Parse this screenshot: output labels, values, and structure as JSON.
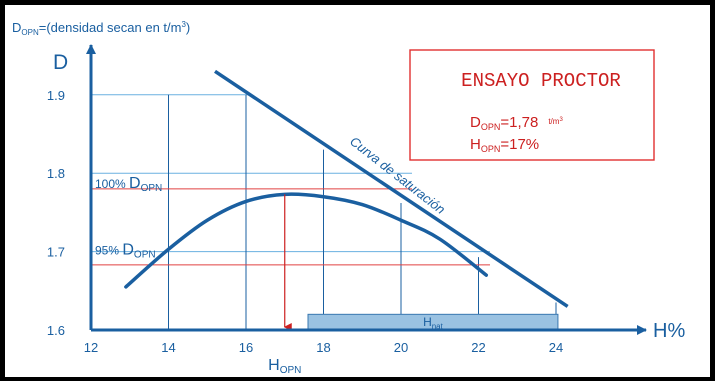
{
  "header": {
    "prefix": "D",
    "sub": "OPN",
    "suffix": "=(densidad secan en t/m",
    "sup": "3",
    "close": ")"
  },
  "infobox": {
    "title": "ENSAYO PROCTOR",
    "d_prefix": "D",
    "d_sub": "OPN",
    "d_value": "=1,78",
    "d_unit": "t/m",
    "d_unit_sup": "3",
    "h_prefix": "H",
    "h_sub": "OPN",
    "h_value": "=17%"
  },
  "colors": {
    "axis": "#1a5fa0",
    "curve": "#1a5fa0",
    "grid": "#6ab0e0",
    "red_line": "#e04040",
    "red_arrow": "#cc2020",
    "box_border": "#e03030",
    "box_text": "#cc2020",
    "band_fill": "#9ac2e2",
    "band_border": "#3a78b0"
  },
  "chart_data": {
    "type": "line",
    "ylabel": "D",
    "xlabel": "H%",
    "x_ticks": [
      12,
      14,
      16,
      18,
      20,
      22,
      24
    ],
    "y_ticks": [
      1.6,
      1.7,
      1.8,
      1.9
    ],
    "y_tick_labels": [
      "1.6",
      "1.7",
      "1.8",
      "1.9"
    ],
    "xlim": [
      12,
      27
    ],
    "ylim": [
      1.6,
      1.95
    ],
    "series": [
      {
        "name": "Curva de saturación",
        "points": [
          [
            15.2,
            1.93
          ],
          [
            24.3,
            1.63
          ]
        ]
      },
      {
        "points": [
          [
            12.9,
            1.655
          ],
          [
            14,
            1.703
          ],
          [
            15,
            1.74
          ],
          [
            16,
            1.764
          ],
          [
            17,
            1.773
          ],
          [
            18,
            1.77
          ],
          [
            19,
            1.76
          ],
          [
            20,
            1.74
          ],
          [
            21,
            1.716
          ],
          [
            22.2,
            1.67
          ]
        ]
      }
    ],
    "annotations": {
      "saturation_label": "Curva de saturación",
      "max_level": {
        "prefix": "100% ",
        "main": "D",
        "sub": "OPN",
        "y": 1.78
      },
      "pct95_level": {
        "prefix": "95% ",
        "main": "D",
        "sub": "OPN",
        "y": 1.7
      },
      "opt_x_label": {
        "main": "H",
        "sub": "OPN",
        "x": 17
      },
      "natural_band": {
        "main": "H",
        "sub": "nat",
        "x_start": 17.6,
        "x_end": 24.05,
        "y_start": 1.6,
        "y_end": 1.62
      }
    }
  }
}
